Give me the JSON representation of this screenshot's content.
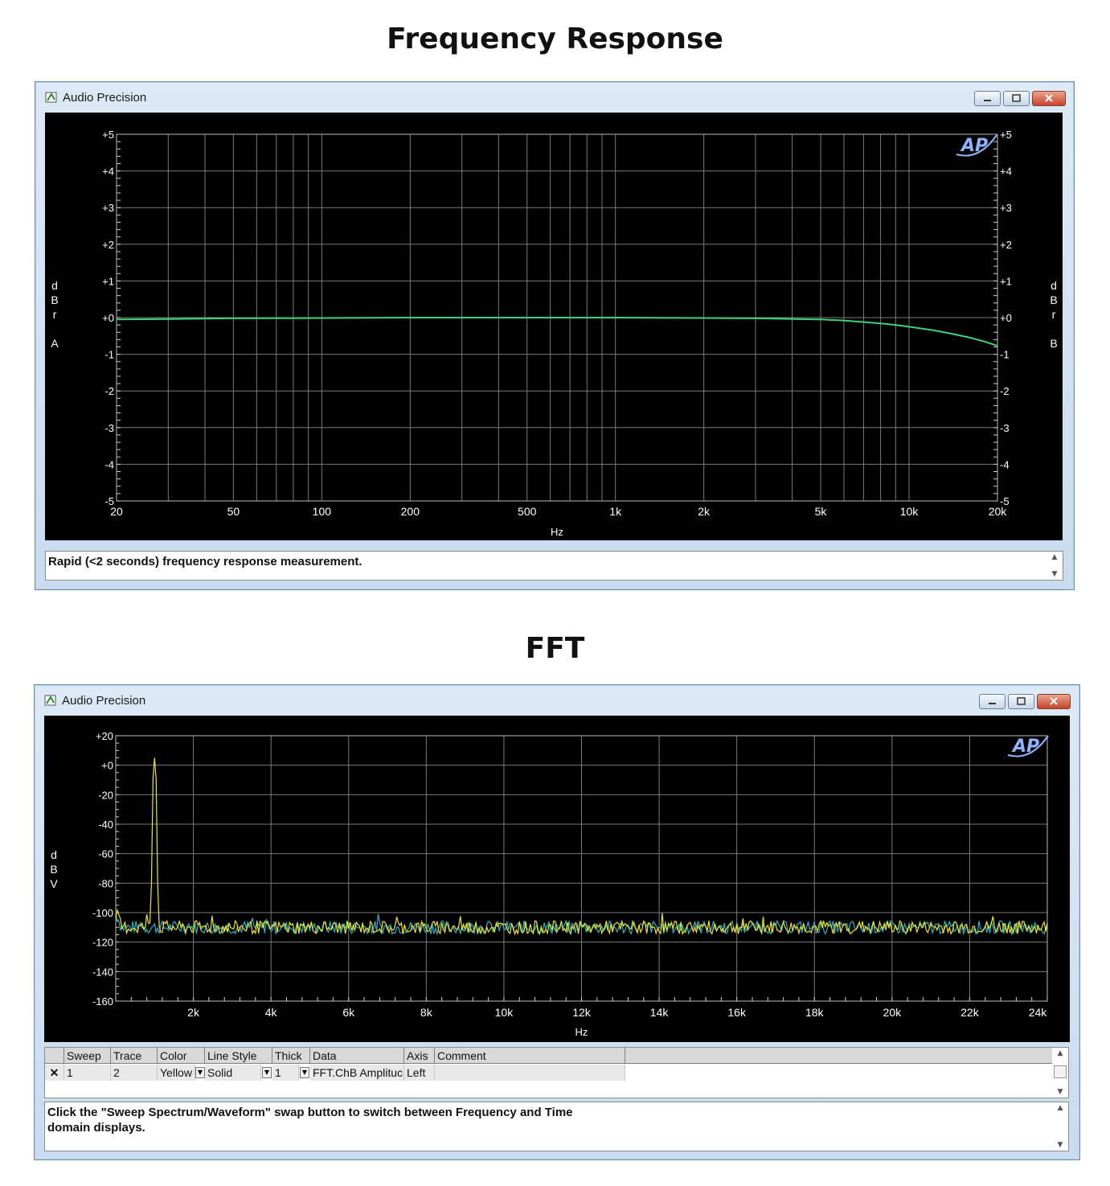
{
  "headings": {
    "top": "Frequency Response",
    "bottom": "FFT"
  },
  "window_title": "Audio Precision",
  "logo": "AP",
  "colors": {
    "grid": "#7a7a7a",
    "axis_text": "#ffffff",
    "trace_green": "#3fd07a",
    "trace_yellow": "#f2e424",
    "trace_cyan": "#27b3c8",
    "plot_bg": "#000000"
  },
  "chart_data": [
    {
      "type": "line",
      "x_scale": "log",
      "xlabel": "Hz",
      "ylabel_left": "dBr A",
      "ylabel_right": "dBr B",
      "xlim": [
        20,
        20000
      ],
      "ylim": [
        -5,
        5
      ],
      "x_ticks": [
        "20",
        "50",
        "100",
        "200",
        "500",
        "1k",
        "2k",
        "5k",
        "10k",
        "20k"
      ],
      "x_tick_values": [
        20,
        50,
        100,
        200,
        500,
        1000,
        2000,
        5000,
        10000,
        20000
      ],
      "y_ticks": [
        "+5",
        "+4",
        "+3",
        "+2",
        "+1",
        "+0",
        "-1",
        "-2",
        "-3",
        "-4",
        "-5"
      ],
      "grid": true,
      "series": [
        {
          "color": "#3fd07a",
          "x": [
            20,
            30,
            50,
            100,
            200,
            500,
            1000,
            2000,
            3000,
            5000,
            6000,
            7000,
            8000,
            9000,
            10000,
            12000,
            14000,
            16000,
            18000,
            20000
          ],
          "y": [
            -0.05,
            -0.04,
            -0.02,
            -0.01,
            0,
            0,
            0,
            -0.01,
            -0.02,
            -0.05,
            -0.08,
            -0.12,
            -0.16,
            -0.2,
            -0.25,
            -0.34,
            -0.44,
            -0.54,
            -0.65,
            -0.77
          ]
        }
      ]
    },
    {
      "type": "line",
      "xlabel": "Hz",
      "ylabel": "dBV",
      "xlim": [
        0,
        24000
      ],
      "ylim": [
        -160,
        20
      ],
      "x_ticks": [
        "2k",
        "4k",
        "6k",
        "8k",
        "10k",
        "12k",
        "14k",
        "16k",
        "18k",
        "20k",
        "22k",
        "24k"
      ],
      "x_tick_values": [
        2000,
        4000,
        6000,
        8000,
        10000,
        12000,
        14000,
        16000,
        18000,
        20000,
        22000,
        24000
      ],
      "y_ticks": [
        "+20",
        "+0",
        "-20",
        "-40",
        "-60",
        "-80",
        "-100",
        "-120",
        "-140",
        "-160"
      ],
      "y_tick_values": [
        20,
        0,
        -20,
        -40,
        -60,
        -80,
        -100,
        -120,
        -140,
        -160
      ],
      "grid": true,
      "noise_floor_db": -110,
      "series": [
        {
          "color": "#27b3c8",
          "peak_hz": null,
          "peak_db": null
        },
        {
          "color": "#f2e424",
          "peak_hz": 1000,
          "peak_db": 5
        }
      ]
    }
  ],
  "top_window": {
    "comment": "Rapid (<2 seconds) frequency response measurement."
  },
  "bottom_window": {
    "table": {
      "headers": [
        "",
        "Sweep",
        "Trace",
        "Color",
        "Line Style",
        "Thick",
        "Data",
        "Axis",
        "Comment"
      ],
      "rows": [
        {
          "check": "✕",
          "sweep": "1",
          "trace": "2",
          "color": "Yellow",
          "line_style": "Solid",
          "thick": "1",
          "data": "FFT.ChB Amplituc",
          "axis": "Left",
          "comment": ""
        }
      ]
    },
    "comment": "Click the \"Sweep Spectrum/Waveform\" swap button to switch between Frequency and Time\ndomain displays."
  }
}
